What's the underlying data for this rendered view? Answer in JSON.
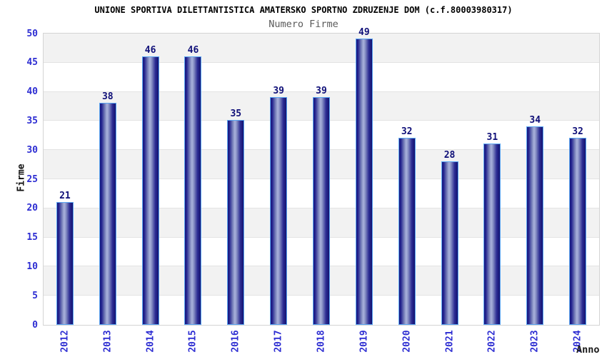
{
  "chart_data": {
    "type": "bar",
    "title": "UNIONE SPORTIVA DILETTANTISTICA AMATERSKO SPORTNO ZDRUZENJE DOM (c.f.80003980317)",
    "subtitle": "Numero Firme",
    "xlabel": "Anno",
    "ylabel": "Firme",
    "categories": [
      "2012",
      "2013",
      "2014",
      "2015",
      "2016",
      "2017",
      "2018",
      "2019",
      "2020",
      "2021",
      "2022",
      "2023",
      "2024"
    ],
    "values": [
      21,
      38,
      46,
      46,
      35,
      39,
      39,
      49,
      32,
      28,
      31,
      34,
      32
    ],
    "ylim": [
      0,
      50
    ],
    "ytick_step": 5,
    "grid": true,
    "legend": "none",
    "band_fill": "alternating-gray"
  },
  "colors": {
    "tick_label_blue": "#2d2dd2",
    "value_label_navy": "#0f0f78",
    "bar_dark": "#16167c",
    "bar_mid": "#7b84bc",
    "bar_light": "#aab2dc",
    "bar_border": "#5ba6f2",
    "band_gray": "#f2f2f2",
    "gridline": "#e3e3e3",
    "plot_border": "#d4d4d4",
    "title_black": "#000000",
    "subtitle_gray": "#5a5a5a"
  }
}
